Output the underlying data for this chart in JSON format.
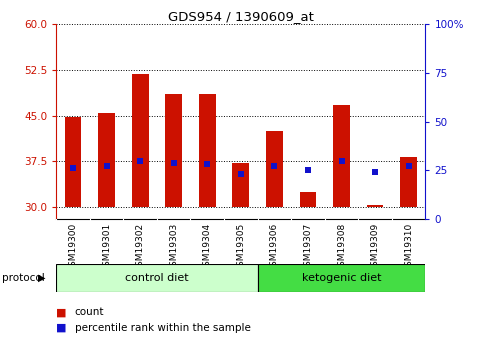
{
  "title": "GDS954 / 1390609_at",
  "samples": [
    "GSM19300",
    "GSM19301",
    "GSM19302",
    "GSM19303",
    "GSM19304",
    "GSM19305",
    "GSM19306",
    "GSM19307",
    "GSM19308",
    "GSM19309",
    "GSM19310"
  ],
  "count_values": [
    44.8,
    45.4,
    51.8,
    48.5,
    48.5,
    37.2,
    42.5,
    32.5,
    46.8,
    30.3,
    38.2
  ],
  "percentile_values": [
    26,
    27,
    30,
    29,
    28,
    23,
    27,
    25,
    30,
    24,
    27
  ],
  "bar_bottom": 30,
  "ylim_left": [
    28,
    60
  ],
  "ylim_right": [
    0,
    100
  ],
  "yticks_left": [
    30,
    37.5,
    45,
    52.5,
    60
  ],
  "yticks_right": [
    0,
    25,
    50,
    75,
    100
  ],
  "ytick_labels_right": [
    "0",
    "25",
    "50",
    "75",
    "100%"
  ],
  "bar_color": "#cc1100",
  "percentile_color": "#1111cc",
  "control_diet_color": "#ccffcc",
  "ketogenic_diet_color": "#44dd44",
  "protocol_label": "protocol",
  "control_label": "control diet",
  "ketogenic_label": "ketogenic diet",
  "grid_color": "black",
  "left_tick_color": "#cc1100",
  "right_tick_color": "#1111cc",
  "bar_width": 0.5
}
